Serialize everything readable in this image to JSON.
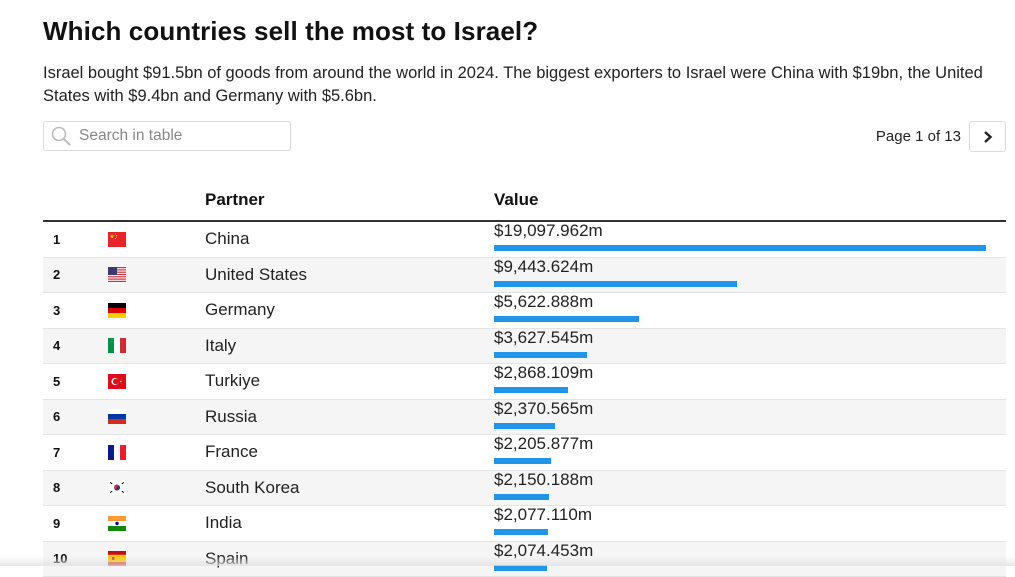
{
  "header": {
    "title": "Which countries sell the most to Israel?",
    "subtitle": "Israel bought $91.5bn of goods from around the world in 2024. The biggest exporters to Israel were China with $19bn, the United States with $9.4bn and Germany with $5.6bn."
  },
  "search": {
    "placeholder": "Search in table",
    "value": "",
    "icon": "search-icon"
  },
  "pagination": {
    "label": "Page 1 of 13",
    "current_page": 1,
    "total_pages": 13,
    "next_icon": "chevron-right-icon"
  },
  "table": {
    "columns": [
      "",
      "",
      "Partner",
      "Value"
    ],
    "bar_color": "#2196e8",
    "max_value": 19097.962,
    "rows": [
      {
        "rank": "1",
        "flag": "china",
        "partner": "China",
        "value_label": "$19,097.962m",
        "value": 19097.962
      },
      {
        "rank": "2",
        "flag": "united-states",
        "partner": "United States",
        "value_label": "$9,443.624m",
        "value": 9443.624
      },
      {
        "rank": "3",
        "flag": "germany",
        "partner": "Germany",
        "value_label": "$5,622.888m",
        "value": 5622.888
      },
      {
        "rank": "4",
        "flag": "italy",
        "partner": "Italy",
        "value_label": "$3,627.545m",
        "value": 3627.545
      },
      {
        "rank": "5",
        "flag": "turkiye",
        "partner": "Turkiye",
        "value_label": "$2,868.109m",
        "value": 2868.109
      },
      {
        "rank": "6",
        "flag": "russia",
        "partner": "Russia",
        "value_label": "$2,370.565m",
        "value": 2370.565
      },
      {
        "rank": "7",
        "flag": "france",
        "partner": "France",
        "value_label": "$2,205.877m",
        "value": 2205.877
      },
      {
        "rank": "8",
        "flag": "south-korea",
        "partner": "South Korea",
        "value_label": "$2,150.188m",
        "value": 2150.188
      },
      {
        "rank": "9",
        "flag": "india",
        "partner": "India",
        "value_label": "$2,077.110m",
        "value": 2077.11
      },
      {
        "rank": "10",
        "flag": "spain",
        "partner": "Spain",
        "value_label": "$2,074.453m",
        "value": 2074.453
      }
    ]
  }
}
